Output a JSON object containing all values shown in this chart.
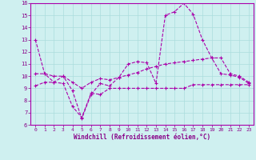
{
  "xlabel": "Windchill (Refroidissement éolien,°C)",
  "background_color": "#cff0f0",
  "grid_color": "#aadddd",
  "line_color": "#aa00aa",
  "text_color": "#880088",
  "xlim_min": -0.5,
  "xlim_max": 23.5,
  "ylim_min": 6,
  "ylim_max": 16,
  "yticks": [
    6,
    7,
    8,
    9,
    10,
    11,
    12,
    13,
    14,
    15,
    16
  ],
  "xticks": [
    0,
    1,
    2,
    3,
    4,
    5,
    6,
    7,
    8,
    9,
    10,
    11,
    12,
    13,
    14,
    15,
    16,
    17,
    18,
    19,
    20,
    21,
    22,
    23
  ],
  "series1_x": [
    0,
    1,
    2,
    3,
    4,
    5,
    6,
    7,
    8,
    9,
    10,
    11,
    12,
    13,
    14,
    15,
    16,
    17,
    18,
    19,
    20,
    21,
    22,
    23
  ],
  "series1_y": [
    13.0,
    10.2,
    9.5,
    10.0,
    8.8,
    6.5,
    8.5,
    9.4,
    9.2,
    9.9,
    11.0,
    11.2,
    11.1,
    9.4,
    15.0,
    15.3,
    16.0,
    15.1,
    13.0,
    11.5,
    10.2,
    10.1,
    9.9,
    9.4
  ],
  "series2_x": [
    0,
    1,
    2,
    3,
    4,
    5,
    6,
    7,
    8,
    9,
    10,
    11,
    12,
    13,
    14,
    15,
    16,
    17,
    18,
    19,
    20,
    21,
    22,
    23
  ],
  "series2_y": [
    9.2,
    9.5,
    9.5,
    9.4,
    7.5,
    6.6,
    8.6,
    8.5,
    9.0,
    9.0,
    9.0,
    9.0,
    9.0,
    9.0,
    9.0,
    9.0,
    9.0,
    9.3,
    9.3,
    9.3,
    9.3,
    9.3,
    9.3,
    9.3
  ],
  "series3_x": [
    0,
    1,
    2,
    3,
    4,
    5,
    6,
    7,
    8,
    9,
    10,
    11,
    12,
    13,
    14,
    15,
    16,
    17,
    18,
    19,
    20,
    21,
    22,
    23
  ],
  "series3_y": [
    10.2,
    10.2,
    10.0,
    10.0,
    9.5,
    9.0,
    9.5,
    9.8,
    9.7,
    9.9,
    10.1,
    10.3,
    10.6,
    10.8,
    11.0,
    11.1,
    11.2,
    11.3,
    11.4,
    11.5,
    11.5,
    10.2,
    10.0,
    9.5
  ]
}
